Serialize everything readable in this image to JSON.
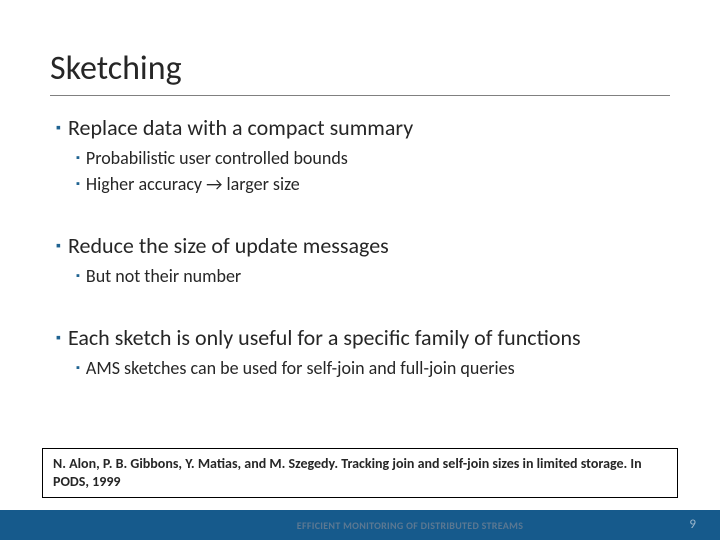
{
  "title": "Sketching",
  "bullets": {
    "b1": "Replace data with a compact summary",
    "b1a": "Probabilistic user controlled bounds",
    "b1b": "Higher accuracy → larger size",
    "b2": "Reduce the size of update messages",
    "b2a": "But not their number",
    "b3": "Each sketch is only useful for a specific family of functions",
    "b3a": "AMS sketches can be used for self-join and full-join queries"
  },
  "citation": "N. Alon, P. B. Gibbons, Y. Matias, and M. Szegedy. Tracking join and self-join sizes in limited storage. In PODS, 1999",
  "footer": "EFFICIENT MONITORING OF DISTRIBUTED STREAMS",
  "page_number": "9",
  "colors": {
    "accent": "#1f6391",
    "footer_bar": "#165a8c",
    "text": "#262626"
  }
}
